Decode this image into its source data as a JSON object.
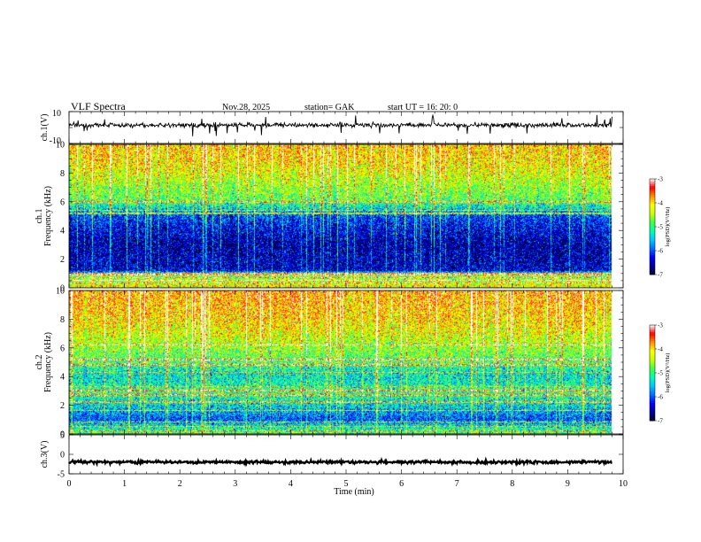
{
  "header": {
    "title": "VLF  Spectra",
    "date": "Nov.28, 2025",
    "station": "station= GAK",
    "start": "start  UT =    16: 20: 0"
  },
  "colors": {
    "colormap": [
      "#000030",
      "#00009a",
      "#0000ff",
      "#0070ff",
      "#00c8ff",
      "#00ffb0",
      "#40ff40",
      "#c8ff00",
      "#ffff00",
      "#ff9000",
      "#ff0000",
      "#ffffff"
    ]
  },
  "chart_data": [
    {
      "type": "line",
      "ylabel": "ch.1(V)",
      "ytick_labels": [
        "10",
        "-10"
      ],
      "ylim": [
        -10,
        10
      ],
      "x_range_min": [
        0,
        9.8
      ],
      "baseline_v": 1.5,
      "noise_amplitude_v": 1.2,
      "spike_range_v": [
        -7,
        7
      ]
    },
    {
      "type": "heatmap",
      "name": "ch.1 spectrogram",
      "ylabel_top": "ch.1",
      "ylabel": "Frequency  (kHz)",
      "ytick_labels": [
        "0",
        "2",
        "4",
        "6",
        "8",
        "10"
      ],
      "ylim": [
        0,
        10
      ],
      "x_range_min": [
        0,
        9.8
      ],
      "colorbar": {
        "label": "log(PSD)(V²/Hz)",
        "ticks": [
          "-3",
          "-4",
          "-5",
          "-6",
          "-7"
        ],
        "range": [
          -7,
          -3
        ]
      },
      "level_profile": [
        {
          "f": 0,
          "v": -4.3
        },
        {
          "f": 0.4,
          "v": -4.6
        },
        {
          "f": 0.9,
          "v": -4.9
        },
        {
          "f": 1.2,
          "v": -6.6
        },
        {
          "f": 2.0,
          "v": -6.7
        },
        {
          "f": 3.0,
          "v": -6.8
        },
        {
          "f": 4.0,
          "v": -6.6
        },
        {
          "f": 5.0,
          "v": -6.3
        },
        {
          "f": 5.6,
          "v": -5.6
        },
        {
          "f": 6.2,
          "v": -5.1
        },
        {
          "f": 7.0,
          "v": -4.9
        },
        {
          "f": 8.0,
          "v": -4.6
        },
        {
          "f": 9.0,
          "v": -4.4
        },
        {
          "f": 10.0,
          "v": -4.3
        }
      ],
      "tone_lines_khz": [
        0.3,
        0.5,
        0.7,
        0.9,
        1.0,
        5.2,
        5.4,
        6.0
      ]
    },
    {
      "type": "heatmap",
      "name": "ch.2 spectrogram",
      "ylabel_top": "ch.2",
      "ylabel": "Frequency  (kHz)",
      "ytick_labels": [
        "0",
        "2",
        "4",
        "6",
        "8",
        "10"
      ],
      "ylim": [
        0,
        10
      ],
      "x_range_min": [
        0,
        9.8
      ],
      "colorbar": {
        "label": "log(PSD)(V²/Hz)",
        "ticks": [
          "-3",
          "-4",
          "-5",
          "-6",
          "-7"
        ],
        "range": [
          -7,
          -3
        ]
      },
      "level_profile": [
        {
          "f": 0,
          "v": -5.0
        },
        {
          "f": 0.5,
          "v": -5.5
        },
        {
          "f": 1.0,
          "v": -6.2
        },
        {
          "f": 1.8,
          "v": -5.7
        },
        {
          "f": 2.5,
          "v": -5.4
        },
        {
          "f": 3.0,
          "v": -5.2
        },
        {
          "f": 3.5,
          "v": -5.5
        },
        {
          "f": 4.2,
          "v": -5.6
        },
        {
          "f": 5.0,
          "v": -5.2
        },
        {
          "f": 6.0,
          "v": -4.9
        },
        {
          "f": 7.0,
          "v": -4.6
        },
        {
          "f": 8.0,
          "v": -4.4
        },
        {
          "f": 9.0,
          "v": -4.3
        },
        {
          "f": 10.0,
          "v": -4.2
        }
      ],
      "tone_lines_khz": [
        0.2,
        0.5,
        0.8,
        1.6,
        2.2,
        2.7,
        3.0,
        3.3,
        4.3,
        4.8,
        5.2,
        6.2
      ]
    },
    {
      "type": "line",
      "ylabel": "ch.3(V)",
      "ytick_labels": [
        "5",
        "0",
        "-5"
      ],
      "ylim": [
        -5,
        5
      ],
      "x_range_min": [
        0,
        9.8
      ],
      "baseline_v": -2.0,
      "noise_amplitude_v": 0.3
    }
  ],
  "xaxis": {
    "label": "Time  (min)",
    "tick_labels": [
      "0",
      "1",
      "2",
      "3",
      "4",
      "5",
      "6",
      "7",
      "8",
      "9",
      "10"
    ],
    "xlim": [
      0,
      10
    ]
  }
}
